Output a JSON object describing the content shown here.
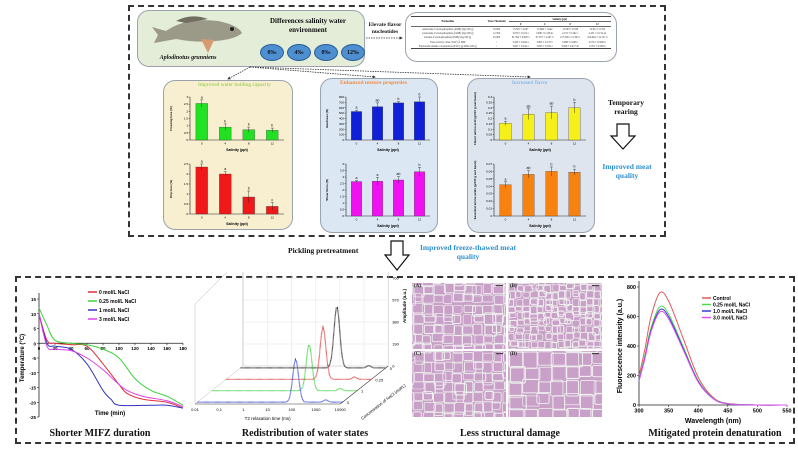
{
  "top": {
    "fish_panel": {
      "species": "Aplodinotus grunniens",
      "heading": "Differences salinity water environment",
      "salinities": [
        "0‰",
        "4‰",
        "8‰",
        "12‰"
      ]
    },
    "elevate_label": "Elevate flavor nucleotides",
    "nucleotide_table": {
      "headers": [
        "Nucleotides",
        "Taste Threshold",
        "Salinity (ppt)"
      ],
      "salinity_columns": [
        "0",
        "4",
        "8",
        "12"
      ],
      "rows": [
        {
          "name": "Adenosine-5'-monophosphate (AMP) (mg/100 g)",
          "threshold": "50.000",
          "values": [
            "13.591 ± 4.007",
            "13.666 ± 1.642",
            "13.593 ± 0.336",
            "13.651 ± 0.355"
          ]
        },
        {
          "name": "Guanosine-5'-monophosphate (GMP) (mg/100 g)",
          "threshold": "12.500",
          "values": [
            "3.076 ± 0.119 a",
            "1.986 ± 0.128 bc",
            "2.155 ± 0.202 c",
            "2.451 ± 0.154 ab"
          ]
        },
        {
          "name": "Inosine-5'-monophosphate (IMP) (mg/100 g)",
          "threshold": "25.000",
          "values": [
            "61.592 ± 6.608 a",
            "97.357 ± 4.297 b",
            "127.209 ± 15.343 c",
            "104.664 ± 12.721 b"
          ]
        },
        {
          "name": "Taste activity value (TAV) of IMP",
          "threshold": "/",
          "values": [
            "3.450 ± 0.264 a",
            "3.895 ± 0.137 b",
            "5.088 ± 0.608 c",
            "4.579 ± 0.509 bc"
          ]
        },
        {
          "name": "Equivalent umami concentration (EUC) (g MSG/100 g)",
          "threshold": "/",
          "values": [
            "3.647 ± 0.242 a",
            "3.935 ± 0.502 a",
            "3.858 ± 0.417 ab",
            "4.701 ± 0.580 b"
          ]
        }
      ]
    },
    "panels": [
      {
        "title": "Improved water holding capacity",
        "title_color": "#8cc63f",
        "background": "#f7efcf"
      },
      {
        "title": "Enhanced texture properties",
        "title_color": "#f08a3c",
        "background": "#dce7f4"
      },
      {
        "title": "Increased flavor",
        "title_color": "#6aa6dc",
        "background": "#dfe5ee"
      }
    ],
    "temporary_rearing": "Temporary rearing",
    "improved_meat_quality": "Improved meat quality",
    "accent_blue": "#2f8fcf"
  },
  "middle": {
    "pickling": "Pickling pretreatment",
    "improved_freeze_thawed": "Improved freeze-thawed meat quality"
  },
  "bottom": {
    "captions": [
      "Shorter MIFZ duration",
      "Redistribution of water states",
      "Less structural damage",
      "Mitigated protein denaturation"
    ],
    "micrograph_labels": [
      "(A)",
      "(B)",
      "(C)",
      "(D)"
    ]
  },
  "chart_data": [
    {
      "id": "freezing-loss",
      "type": "bar",
      "categories": [
        "0",
        "4",
        "8",
        "12"
      ],
      "values": [
        2.55,
        0.9,
        0.72,
        0.68
      ],
      "errors": [
        0.25,
        0.22,
        0.18,
        0.15
      ],
      "letters": [
        "a",
        "b",
        "b",
        "b"
      ],
      "xlabel": "Salinity (ppt)",
      "ylabel": "Freezing loss (%)",
      "ylim": [
        0,
        3.0
      ],
      "yticks": [
        0,
        0.5,
        1.0,
        1.5,
        2.0,
        2.5,
        3.0
      ],
      "color": "#22e022"
    },
    {
      "id": "drip-loss",
      "type": "bar",
      "categories": [
        "0",
        "4",
        "8",
        "12"
      ],
      "values": [
        2.35,
        2.0,
        0.85,
        0.38
      ],
      "errors": [
        0.15,
        0.12,
        0.3,
        0.2
      ],
      "letters": [
        "a",
        "a",
        "b",
        "c"
      ],
      "xlabel": "Salinity (ppt)",
      "ylabel": "Drip loss (%)",
      "ylim": [
        0,
        2.5
      ],
      "yticks": [
        0,
        0.5,
        1.0,
        1.5,
        2.0,
        2.5
      ],
      "color": "#f01818"
    },
    {
      "id": "hardness",
      "type": "bar",
      "categories": [
        "0",
        "4",
        "8",
        "12"
      ],
      "values": [
        530,
        620,
        690,
        710
      ],
      "errors": [
        25,
        70,
        25,
        90
      ],
      "letters": [
        "a",
        "ab",
        "b",
        "b"
      ],
      "xlabel": "Salinity (ppt)",
      "ylabel": "Hardness (N)",
      "ylim": [
        0,
        800
      ],
      "yticks": [
        0,
        100,
        200,
        300,
        400,
        500,
        600,
        700,
        800
      ],
      "color": "#1020d8"
    },
    {
      "id": "shear-force",
      "type": "bar",
      "categories": [
        "0",
        "4",
        "8",
        "12"
      ],
      "values": [
        2.65,
        2.67,
        2.77,
        3.4
      ],
      "errors": [
        0.08,
        0.3,
        0.25,
        0.35
      ],
      "letters": [
        "a",
        "a",
        "ab",
        "b"
      ],
      "xlabel": "Salinity (ppt)",
      "ylabel": "Shear force (N)",
      "ylim": [
        0,
        4.0
      ],
      "yticks": [
        0,
        0.5,
        1.0,
        1.5,
        2.0,
        2.5,
        3.0,
        3.5,
        4.0
      ],
      "color": "#f010f0"
    },
    {
      "id": "flavor-amino-acids",
      "type": "bar",
      "categories": [
        "0",
        "4",
        "8",
        "12"
      ],
      "values": [
        0.155,
        0.24,
        0.255,
        0.3
      ],
      "errors": [
        0.02,
        0.05,
        0.06,
        0.05
      ],
      "letters": [
        "a",
        "ab",
        "ab",
        "b"
      ],
      "xlabel": "Salinity (ppt)",
      "ylabel": "Flavor amino acid (g/100 g wet basis)",
      "ylim": [
        0,
        0.4
      ],
      "yticks": [
        0,
        0.05,
        0.1,
        0.15,
        0.2,
        0.25,
        0.3,
        0.35,
        0.4
      ],
      "color": "#f5f01a"
    },
    {
      "id": "essential-amino-acids",
      "type": "bar",
      "categories": [
        "0",
        "4",
        "8",
        "12"
      ],
      "values": [
        0.042,
        0.056,
        0.06,
        0.059
      ],
      "errors": [
        0.004,
        0.005,
        0.006,
        0.004
      ],
      "letters": [
        "a",
        "ab",
        "b",
        "b"
      ],
      "xlabel": "Salinity (ppt)",
      "ylabel": "Essential amino acids (g/100 g wet basis)",
      "ylim": [
        0,
        0.07
      ],
      "yticks": [
        0,
        0.01,
        0.02,
        0.03,
        0.04,
        0.05,
        0.06,
        0.07
      ],
      "color": "#f7820f"
    },
    {
      "id": "temperature",
      "type": "line",
      "xlabel": "Time (min)",
      "ylabel": "Temperature (°C)",
      "xlim": [
        0,
        180
      ],
      "ylim": [
        -25,
        15
      ],
      "xticks": [
        0,
        20,
        40,
        60,
        80,
        100,
        120,
        140,
        160,
        180
      ],
      "yticks": [
        -25,
        -20,
        -15,
        -10,
        -5,
        0,
        5,
        10,
        15
      ],
      "legend": "top-right",
      "series": [
        {
          "name": "0 mol/L NaCl",
          "color": "#e0303a",
          "x": [
            0,
            10,
            20,
            40,
            60,
            80,
            100,
            110,
            130,
            160,
            180
          ],
          "y": [
            10,
            1,
            0,
            -0.5,
            -1,
            -7,
            -14,
            -17,
            -19,
            -20,
            -22
          ]
        },
        {
          "name": "0.25 mol/L NaCl",
          "color": "#3ed23e",
          "x": [
            0,
            10,
            20,
            40,
            60,
            80,
            100,
            120,
            140,
            160,
            180
          ],
          "y": [
            12,
            6,
            1,
            0,
            -0.5,
            -2,
            -5,
            -12,
            -16,
            -18,
            -21
          ]
        },
        {
          "name": "1 mol/L NaCl",
          "color": "#3434c0",
          "x": [
            0,
            10,
            20,
            40,
            60,
            80,
            90,
            100,
            140,
            160,
            180
          ],
          "y": [
            10,
            0,
            -1,
            -2,
            -7,
            -16,
            -19,
            -21,
            -21,
            -21,
            -22
          ]
        },
        {
          "name": "3 mol/L NaCl",
          "color": "#e040e8",
          "x": [
            0,
            10,
            20,
            40,
            60,
            80,
            100,
            110,
            130,
            160,
            180
          ],
          "y": [
            10,
            -1,
            -2,
            -2.5,
            -5,
            -9,
            -14,
            -16,
            -18,
            -19.5,
            -21.5
          ]
        }
      ]
    },
    {
      "id": "lf-nmr",
      "type": "line",
      "xlabel": "T2 relaxation time (ms)",
      "ylabel": "Amplitude (a.u.)",
      "zlabel": "Concentration of NaCl (mol/L)",
      "xticks": [
        "0.01",
        "0.1",
        "1",
        "10",
        "100",
        "1000",
        "10000"
      ],
      "yticks": [
        0,
        190,
        380,
        570,
        760,
        950
      ],
      "x_scale": "log",
      "series": [
        {
          "name": "0",
          "color": "#000000",
          "peak_t2_ms": 95,
          "peak_amplitude": 530
        },
        {
          "name": "0.25",
          "color": "#d81e1e",
          "peak_t2_ms": 100,
          "peak_amplitude": 450
        },
        {
          "name": "1",
          "color": "#22cc22",
          "peak_t2_ms": 105,
          "peak_amplitude": 400
        },
        {
          "name": "3",
          "color": "#1e2ed0",
          "peak_t2_ms": 115,
          "peak_amplitude": 370
        }
      ]
    },
    {
      "id": "fluorescence",
      "type": "line",
      "xlabel": "Wavelength (nm)",
      "ylabel": "Fluorescence intensity (a.u.)",
      "xlim": [
        300,
        550
      ],
      "ylim": [
        0,
        800
      ],
      "xticks": [
        300,
        350,
        400,
        450,
        500,
        550
      ],
      "yticks": [
        0,
        200,
        400,
        600,
        800
      ],
      "legend": "top-right",
      "series": [
        {
          "name": "Control",
          "color": "#e05a5a",
          "x": [
            300,
            310,
            320,
            335,
            350,
            375,
            400,
            425,
            450,
            500,
            550
          ],
          "y": [
            196,
            379,
            593,
            760,
            705,
            448,
            188,
            52,
            10,
            0,
            0
          ]
        },
        {
          "name": "0.25 mol/L NaCl",
          "color": "#50d850",
          "x": [
            300,
            310,
            320,
            335,
            350,
            375,
            400,
            425,
            450,
            500,
            550
          ],
          "y": [
            172,
            332,
            519,
            665,
            617,
            392,
            165,
            46,
            9,
            0,
            0
          ]
        },
        {
          "name": "1.0 mol/L NaCl",
          "color": "#3a3ad0",
          "x": [
            300,
            310,
            320,
            335,
            350,
            375,
            400,
            425,
            450,
            500,
            550
          ],
          "y": [
            166,
            322,
            503,
            645,
            599,
            380,
            160,
            44,
            8,
            0,
            0
          ]
        },
        {
          "name": "3.0 mol/L NaCl",
          "color": "#e050f0",
          "x": [
            300,
            310,
            320,
            335,
            350,
            375,
            400,
            425,
            450,
            500,
            550
          ],
          "y": [
            162,
            314,
            492,
            630,
            584,
            371,
            155,
            43,
            8,
            0,
            0
          ]
        }
      ]
    }
  ]
}
